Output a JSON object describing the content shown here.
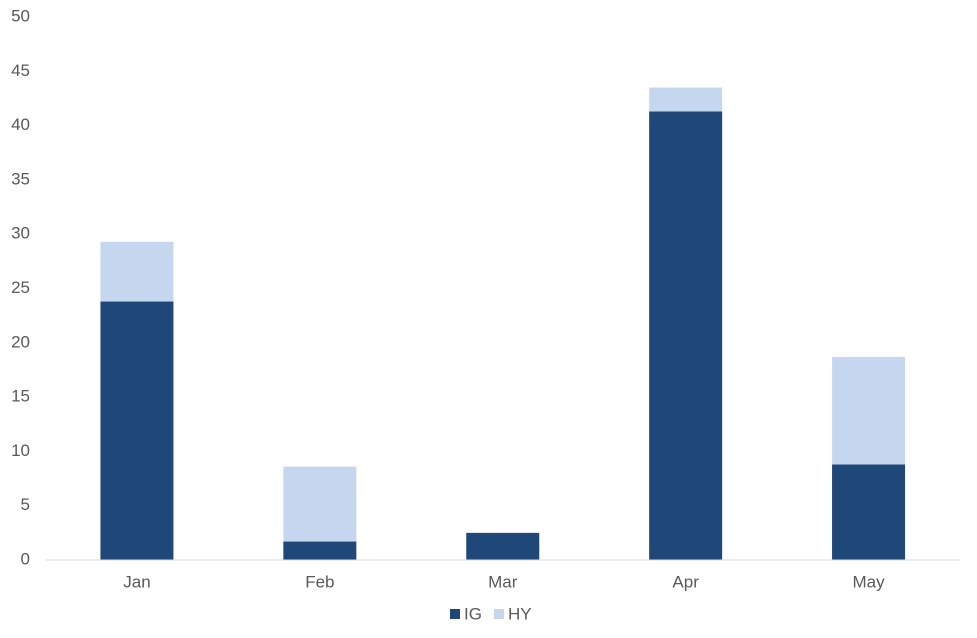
{
  "chart_data": {
    "type": "stacked_bar",
    "categories": [
      "Jan",
      "Feb",
      "Mar",
      "Apr",
      "May"
    ],
    "series": [
      {
        "name": "IG",
        "color": "#1f4778",
        "values": [
          23.8,
          1.7,
          2.5,
          41.3,
          8.8
        ]
      },
      {
        "name": "HY",
        "color": "#c5d7ef",
        "values": [
          5.5,
          6.9,
          0,
          2.2,
          9.9
        ]
      }
    ],
    "ylim": [
      0,
      50
    ],
    "yticks": [
      0,
      5,
      10,
      15,
      20,
      25,
      30,
      35,
      40,
      45,
      50
    ],
    "grid": false,
    "legend": "bottom"
  }
}
